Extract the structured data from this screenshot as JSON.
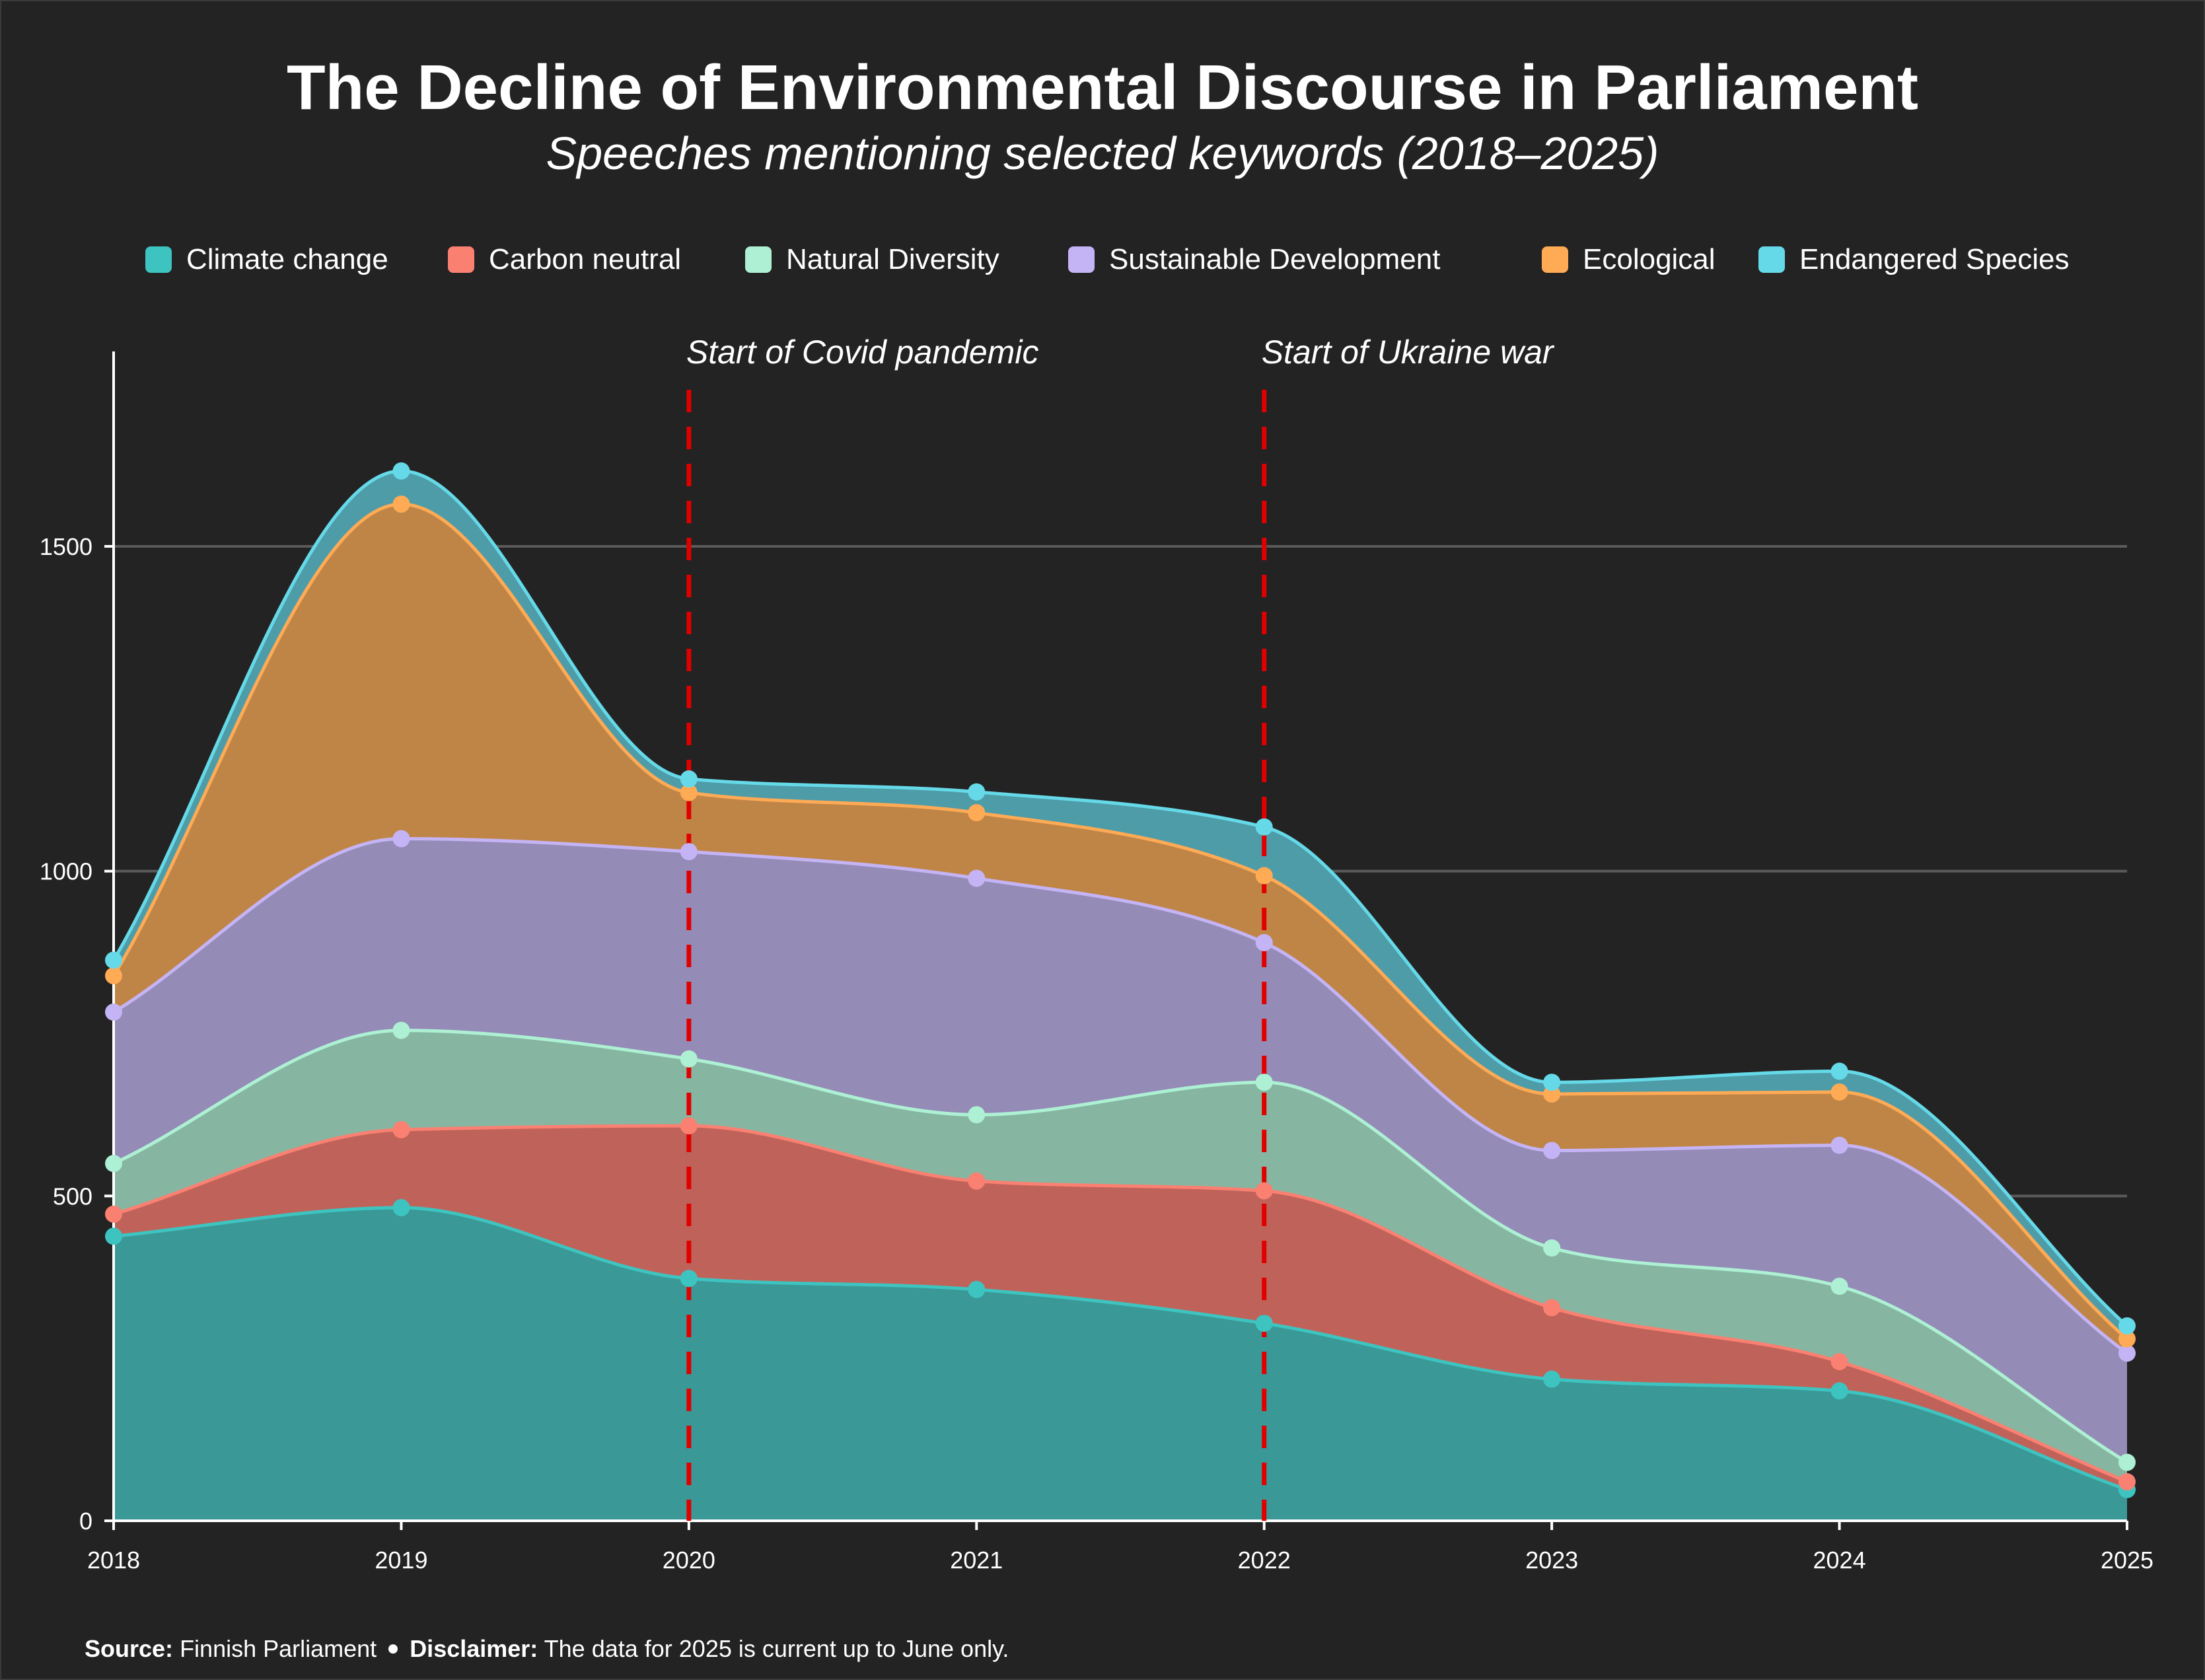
{
  "title": "The Decline of Environmental Discourse in Parliament",
  "subtitle": "Speeches mentioning selected keywords (2018–2025)",
  "footer": {
    "source_label": "Source:",
    "source_text": "Finnish Parliament",
    "disclaimer_label": "Disclaimer:",
    "disclaimer_text": "The data for 2025 is current up to June only."
  },
  "chart_data": {
    "type": "area",
    "stacked": true,
    "x": [
      "2018",
      "2019",
      "2020",
      "2021",
      "2022",
      "2023",
      "2024",
      "2025"
    ],
    "ylim": [
      0,
      1800
    ],
    "yticks": [
      0,
      500,
      1000,
      1500
    ],
    "grid": true,
    "legend_position": "top",
    "series": [
      {
        "name": "Climate change",
        "color": "#3ec4c0",
        "fill": "#3a9896",
        "values": [
          438,
          482,
          373,
          356,
          304,
          218,
          200,
          48
        ]
      },
      {
        "name": "Carbon neutral",
        "color": "#fa8072",
        "fill": "#bf635a",
        "values": [
          34,
          120,
          235,
          167,
          204,
          110,
          45,
          12
        ]
      },
      {
        "name": "Natural Diversity",
        "color": "#aef0d4",
        "fill": "#86b6a1",
        "values": [
          78,
          153,
          103,
          102,
          167,
          92,
          116,
          30
        ]
      },
      {
        "name": "Sustainable Development",
        "color": "#c5b4f5",
        "fill": "#948bb6",
        "values": [
          233,
          295,
          319,
          364,
          215,
          150,
          217,
          168
        ]
      },
      {
        "name": "Ecological",
        "color": "#ffaa55",
        "fill": "#bf8547",
        "values": [
          56,
          515,
          91,
          101,
          103,
          87,
          82,
          22
        ]
      },
      {
        "name": "Endangered Species",
        "color": "#66d9e8",
        "fill": "#4e9ca7",
        "values": [
          24,
          51,
          21,
          32,
          75,
          18,
          32,
          20
        ]
      }
    ],
    "annotations": [
      {
        "x": "2020",
        "label": "Start of Covid pandemic",
        "color": "#e00000"
      },
      {
        "x": "2022",
        "label": "Start of Ukraine war",
        "color": "#e00000"
      }
    ]
  }
}
